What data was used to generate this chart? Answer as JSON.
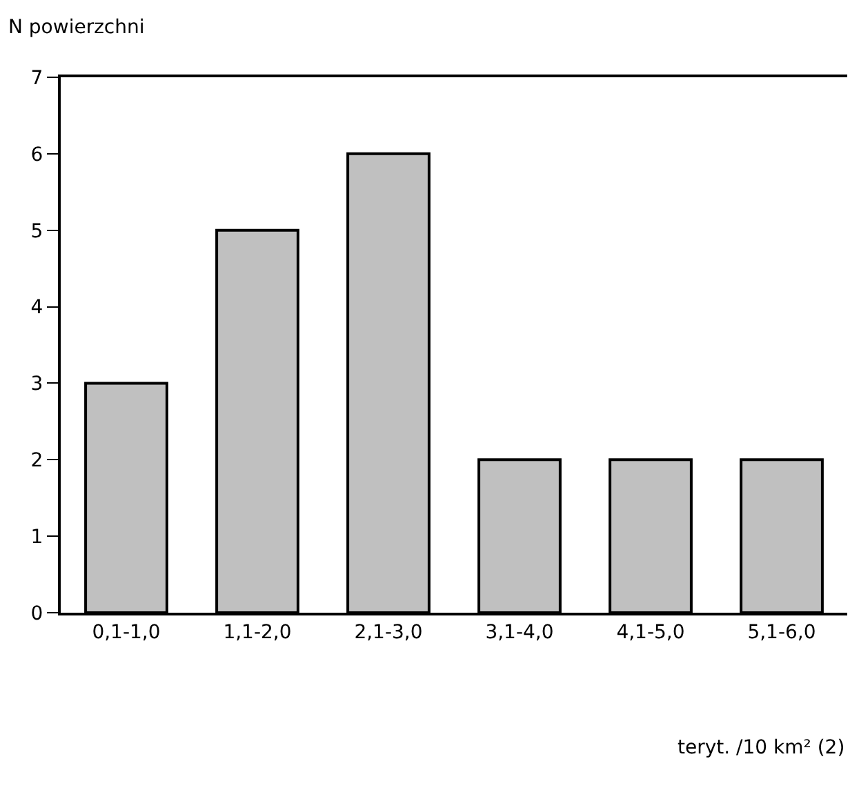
{
  "chart_data": {
    "type": "bar",
    "ylabel": "N powierzchni",
    "xlabel": "teryt. /10 km² (2)",
    "categories": [
      "0,1-1,0",
      "1,1-2,0",
      "2,1-3,0",
      "3,1-4,0",
      "4,1-5,0",
      "5,1-6,0"
    ],
    "values": [
      3,
      5,
      6,
      2,
      2,
      2
    ],
    "color": "#c0c0c0",
    "ylim": [
      0,
      7
    ],
    "yticks": [
      0,
      1,
      2,
      3,
      4,
      5,
      6,
      7
    ],
    "grid": false
  }
}
